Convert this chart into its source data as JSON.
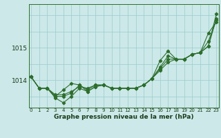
{
  "xlabel": "Graphe pression niveau de la mer (hPa)",
  "background_color": "#cce8e8",
  "grid_color": "#99cccc",
  "line_color": "#2d6e2d",
  "xlim": [
    -0.3,
    23.3
  ],
  "ylim": [
    1013.15,
    1016.35
  ],
  "yticks": [
    1014,
    1015
  ],
  "xticks": [
    0,
    1,
    2,
    3,
    4,
    5,
    6,
    7,
    8,
    9,
    10,
    11,
    12,
    13,
    14,
    15,
    16,
    17,
    18,
    19,
    20,
    21,
    22,
    23
  ],
  "series": [
    [
      1014.1,
      1013.75,
      1013.75,
      1013.55,
      1013.55,
      1013.65,
      1013.8,
      1013.75,
      1013.85,
      1013.85,
      1013.75,
      1013.75,
      1013.75,
      1013.75,
      1013.85,
      1014.05,
      1014.3,
      1014.55,
      1014.65,
      1014.65,
      1014.8,
      1014.85,
      1015.05,
      1015.9
    ],
    [
      1014.1,
      1013.75,
      1013.75,
      1013.5,
      1013.7,
      1013.9,
      1013.85,
      1013.7,
      1013.85,
      1013.85,
      1013.75,
      1013.75,
      1013.75,
      1013.75,
      1013.85,
      1014.05,
      1014.6,
      1014.9,
      1014.65,
      1014.65,
      1014.8,
      1014.85,
      1015.05,
      1016.05
    ],
    [
      1014.1,
      1013.75,
      1013.75,
      1013.45,
      1013.3,
      1013.5,
      1013.75,
      1013.65,
      1013.8,
      1013.85,
      1013.75,
      1013.75,
      1013.75,
      1013.75,
      1013.85,
      1014.05,
      1014.4,
      1014.75,
      1014.65,
      1014.65,
      1014.8,
      1014.85,
      1015.45,
      1015.8
    ],
    [
      1014.1,
      1013.75,
      1013.75,
      1013.5,
      1013.5,
      1013.6,
      1013.85,
      1013.65,
      1013.8,
      1013.85,
      1013.75,
      1013.75,
      1013.75,
      1013.75,
      1013.85,
      1014.05,
      1014.35,
      1014.65,
      1014.65,
      1014.65,
      1014.8,
      1014.85,
      1015.2,
      1015.85
    ]
  ],
  "marker": "D",
  "markersize": 2.2,
  "linewidth": 0.8,
  "xlabel_fontsize": 6.5,
  "ytick_fontsize": 6.5,
  "xtick_fontsize": 5.0
}
